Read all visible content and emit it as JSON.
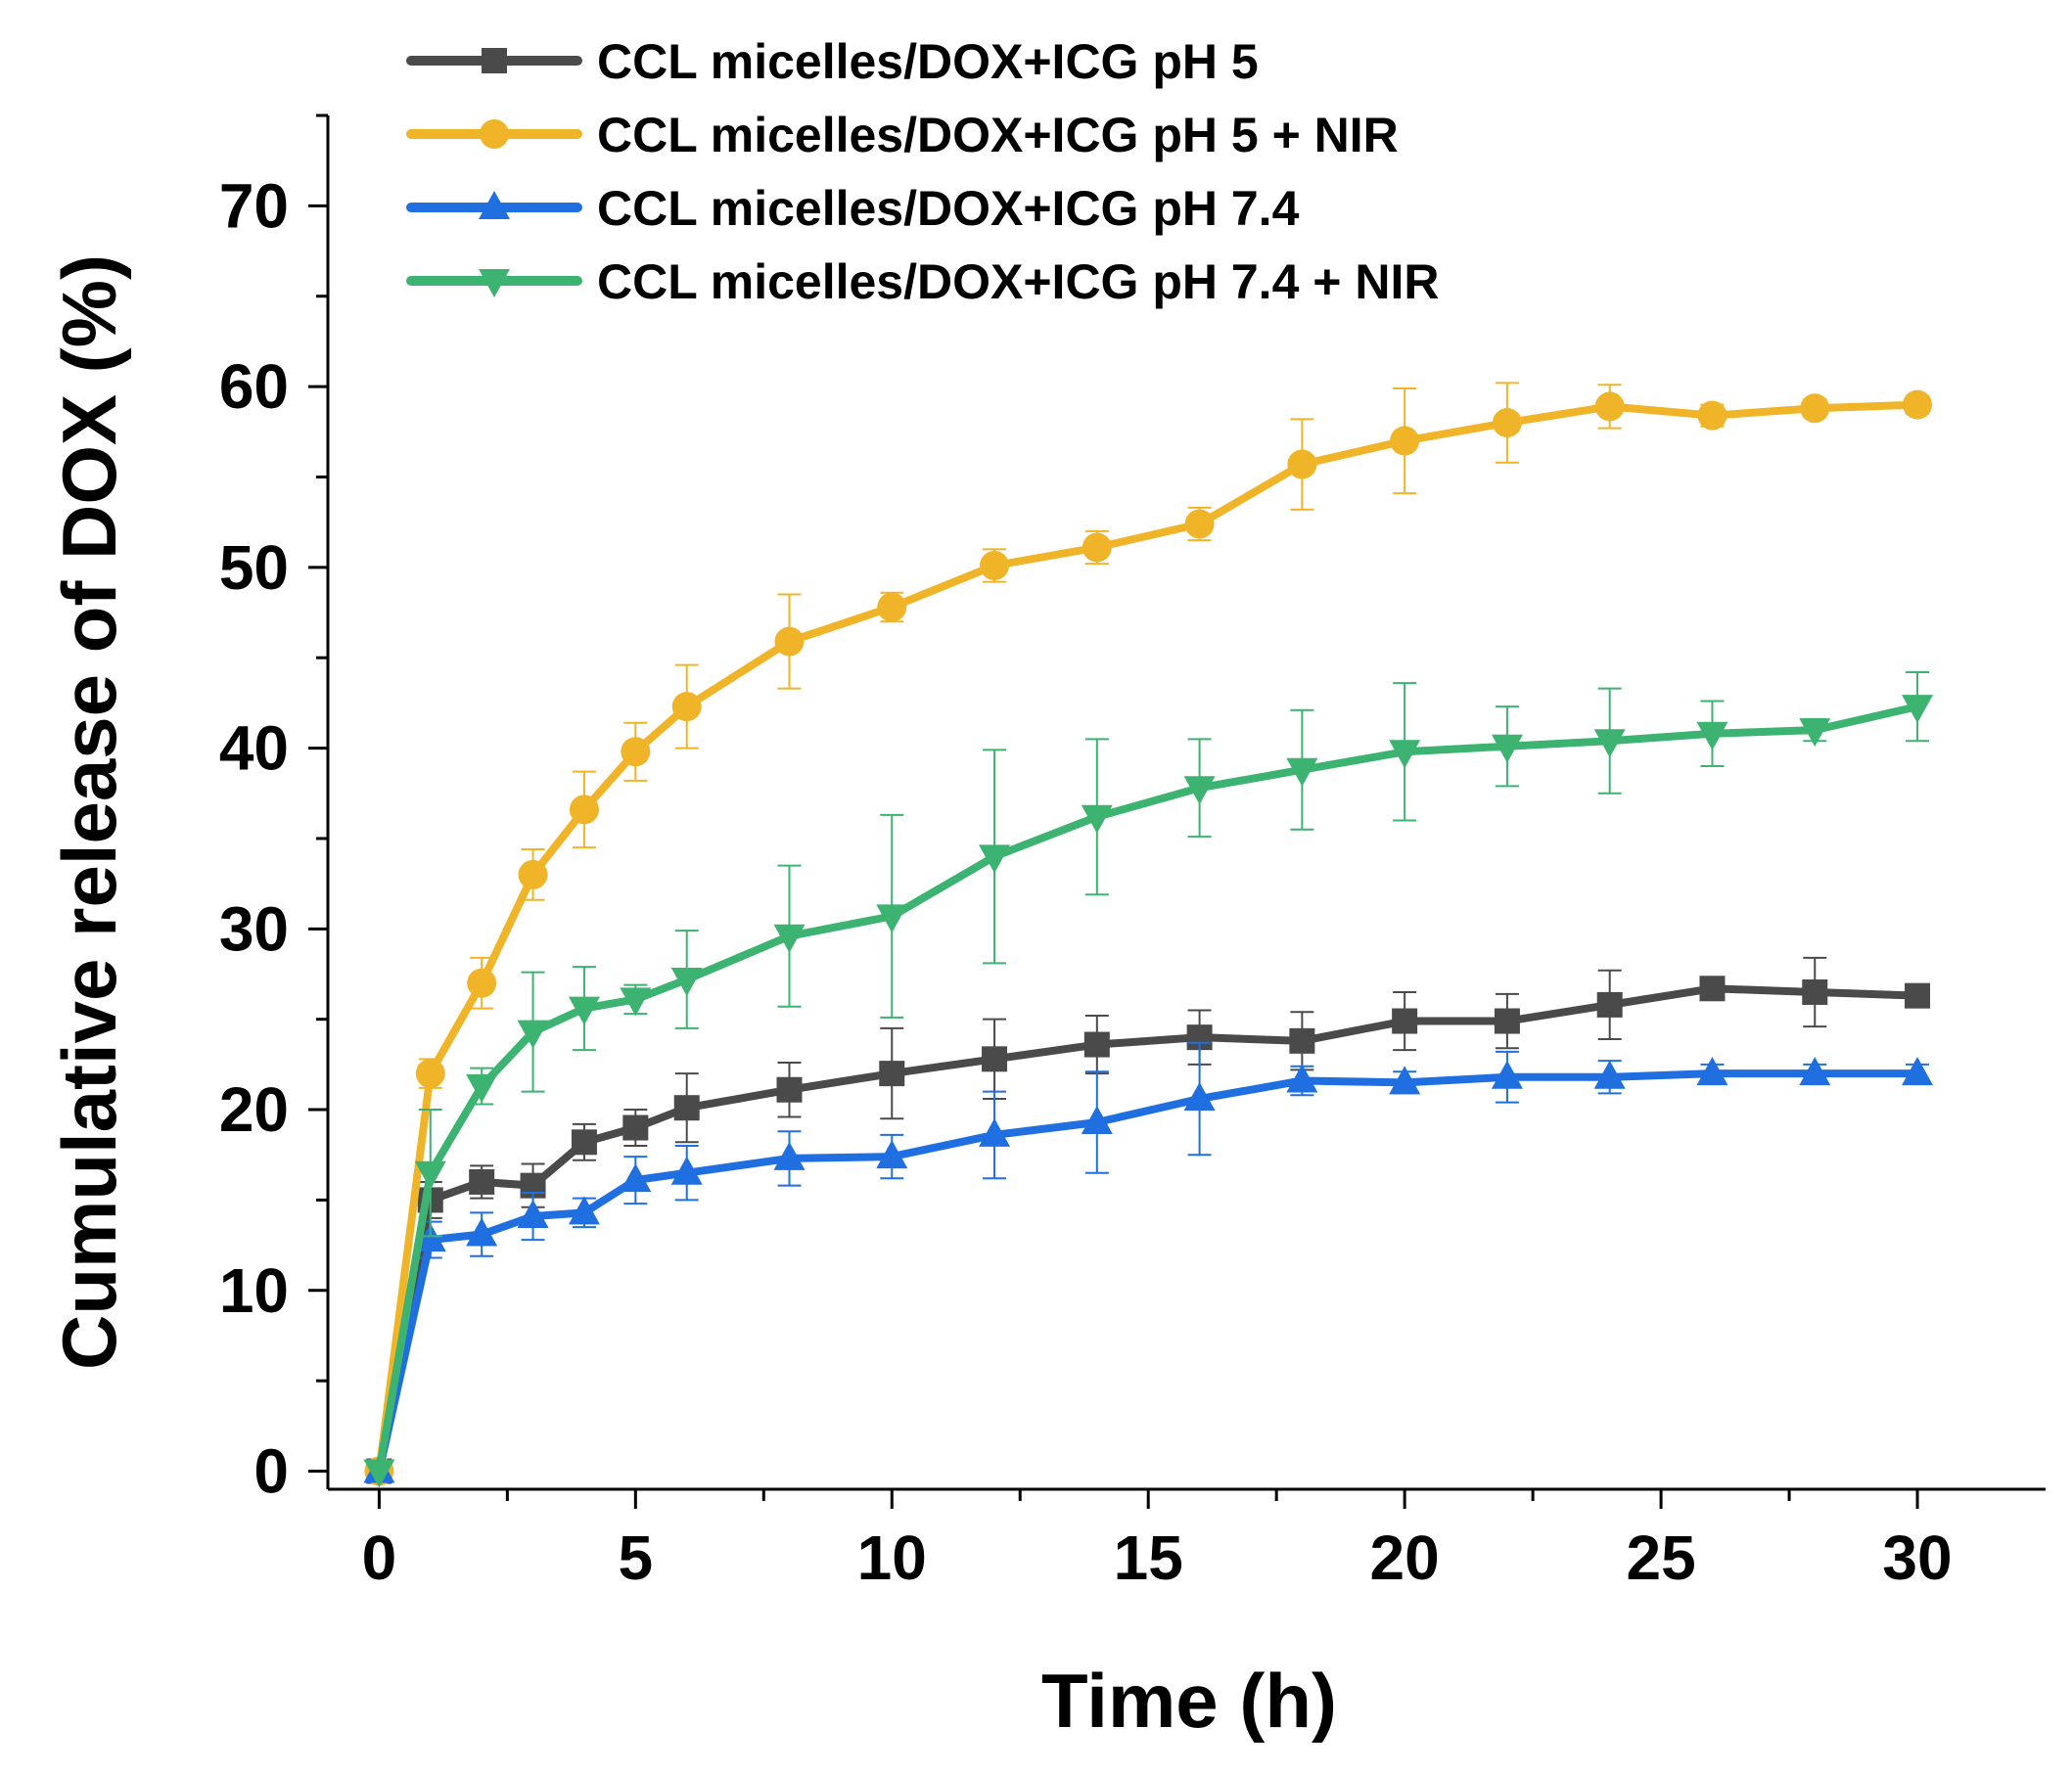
{
  "chart_data": {
    "type": "line",
    "xlabel": "Time (h)",
    "ylabel": "Cumulative release of DOX (%)",
    "xlim": [
      -1,
      32.5
    ],
    "ylim": [
      -1,
      75
    ],
    "x_ticks": [
      0,
      5,
      10,
      15,
      20,
      25,
      30
    ],
    "y_ticks": [
      0,
      10,
      20,
      30,
      40,
      50,
      60,
      70
    ],
    "x_minor_step": 2.5,
    "y_minor_step": 5,
    "legend_position": "top",
    "grid": false,
    "series": [
      {
        "name": "CCL micelles/DOX+ICG pH 5",
        "color": "#4a4a4a",
        "marker": "square",
        "x": [
          0,
          1,
          2,
          3,
          4,
          5,
          6,
          8,
          10,
          12,
          14,
          16,
          18,
          20,
          22,
          24,
          26,
          28,
          30
        ],
        "values": [
          0,
          15,
          16,
          15.8,
          18.2,
          19,
          20.1,
          21.1,
          22,
          22.8,
          23.6,
          24,
          23.8,
          24.9,
          24.9,
          25.8,
          26.7,
          26.5,
          26.3
        ],
        "errors": [
          0,
          1.0,
          0.9,
          1.2,
          1.0,
          1.0,
          1.9,
          1.5,
          2.5,
          2.2,
          1.6,
          1.5,
          1.6,
          1.6,
          1.5,
          1.9,
          0.5,
          1.9,
          0.5
        ]
      },
      {
        "name": "CCL micelles/DOX+ICG pH 5 + NIR",
        "color": "#f0b429",
        "marker": "circle",
        "x": [
          0,
          1,
          2,
          3,
          4,
          5,
          6,
          8,
          10,
          12,
          14,
          16,
          18,
          20,
          22,
          24,
          26,
          28,
          30
        ],
        "values": [
          0,
          22,
          27,
          33,
          36.6,
          39.8,
          42.3,
          45.9,
          47.8,
          50.1,
          51.1,
          52.4,
          55.7,
          57,
          58,
          58.9,
          58.4,
          58.8,
          59
        ],
        "errors": [
          0,
          0.8,
          1.4,
          1.4,
          2.1,
          1.6,
          2.3,
          2.6,
          0.8,
          0.9,
          0.9,
          0.9,
          2.5,
          2.9,
          2.2,
          1.2,
          0.6,
          0.5,
          0.5
        ]
      },
      {
        "name": "CCL micelles/DOX+ICG pH 7.4",
        "color": "#1f6fe0",
        "marker": "triangle-up",
        "x": [
          0,
          1,
          2,
          3,
          4,
          5,
          6,
          8,
          10,
          12,
          14,
          16,
          18,
          20,
          22,
          24,
          26,
          28,
          30
        ],
        "values": [
          0,
          12.8,
          13.1,
          14.1,
          14.3,
          16.1,
          16.5,
          17.3,
          17.4,
          18.6,
          19.3,
          20.6,
          21.6,
          21.5,
          21.8,
          21.8,
          22,
          22,
          22
        ],
        "errors": [
          0,
          1.0,
          1.2,
          1.3,
          0.8,
          1.3,
          1.5,
          1.5,
          1.2,
          2.4,
          2.8,
          3.1,
          0.8,
          0.6,
          1.4,
          0.9,
          0.5,
          0.5,
          0.5
        ]
      },
      {
        "name": "CCL micelles/DOX+ICG pH 7.4 + NIR",
        "color": "#3cb371",
        "marker": "triangle-down",
        "x": [
          0,
          1,
          2,
          3,
          4,
          5,
          6,
          8,
          10,
          12,
          14,
          16,
          18,
          20,
          22,
          24,
          26,
          28,
          30
        ],
        "values": [
          0,
          16.5,
          21.3,
          24.3,
          25.6,
          26.1,
          27.2,
          29.6,
          30.7,
          34,
          36.2,
          37.8,
          38.8,
          39.8,
          40.1,
          40.4,
          40.8,
          41,
          42.3
        ],
        "errors": [
          0,
          3.5,
          1.0,
          3.3,
          2.3,
          0.8,
          2.7,
          3.9,
          5.6,
          5.9,
          4.3,
          2.7,
          3.3,
          3.8,
          2.2,
          2.9,
          1.8,
          0.6,
          1.9
        ]
      }
    ]
  }
}
